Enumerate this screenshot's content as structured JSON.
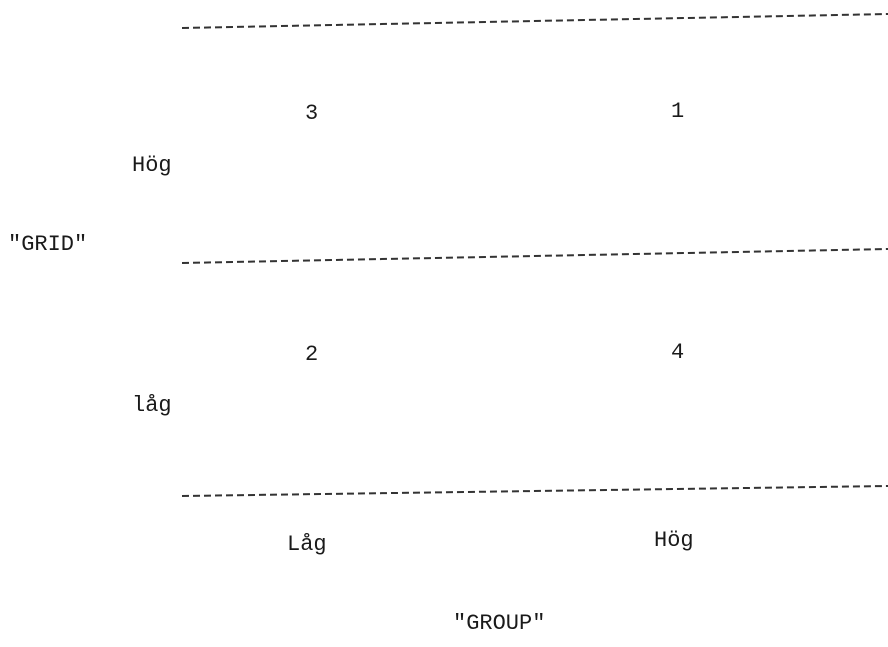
{
  "diagram": {
    "y_axis": {
      "title": "\"GRID\"",
      "levels": {
        "high": "Hög",
        "low": "låg"
      }
    },
    "x_axis": {
      "title": "\"GROUP\"",
      "levels": {
        "low": "Låg",
        "high": "Hög"
      }
    },
    "quadrants": {
      "top_left": "3",
      "top_right": "1",
      "bottom_left": "2",
      "bottom_right": "4"
    },
    "line_color": "#333333"
  }
}
